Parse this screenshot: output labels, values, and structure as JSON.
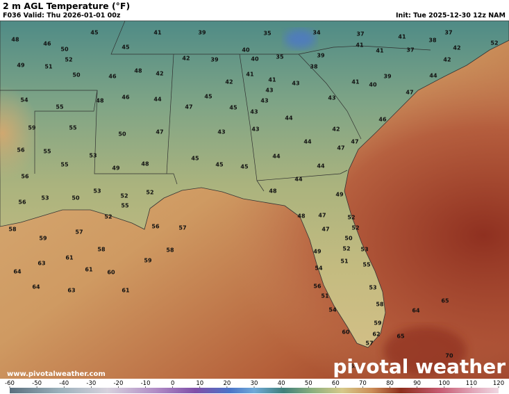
{
  "header": {
    "title": "2 m AGL Temperature (°F)",
    "valid": "F036 Valid: Thu 2026-01-01 00z",
    "init": "Init: Tue 2025-12-30 12z NAM"
  },
  "map": {
    "labels": [
      48,
      46,
      50,
      52,
      49,
      51,
      50,
      45,
      45,
      41,
      39,
      35,
      34,
      37,
      41,
      37,
      38,
      52,
      42,
      41,
      41,
      37,
      40,
      40,
      35,
      39,
      38,
      42,
      39,
      48,
      42,
      46,
      42,
      44,
      54,
      55,
      48,
      46,
      44,
      42,
      41,
      41,
      43,
      43,
      43,
      41,
      40,
      39,
      47,
      47,
      45,
      45,
      43,
      43,
      44,
      59,
      55,
      50,
      47,
      43,
      43,
      42,
      44,
      46,
      56,
      55,
      53,
      47,
      47,
      45,
      45,
      45,
      44,
      44,
      55,
      49,
      48,
      56,
      53,
      52,
      44,
      48,
      49,
      56,
      53,
      50,
      52,
      55,
      52,
      48,
      47,
      52,
      58,
      57,
      56,
      57,
      52,
      47,
      50,
      59,
      58,
      58,
      49,
      52,
      53,
      61,
      59,
      63,
      51,
      55,
      61,
      60,
      64,
      54,
      64,
      63,
      61,
      56,
      53,
      51,
      58,
      65,
      54,
      64,
      59,
      60,
      62,
      65,
      57,
      70,
      63
    ]
  },
  "footer": {
    "url": "www.pivotalweather.com",
    "logo": "pivotal weather"
  },
  "colorbar": {
    "ticks": [
      -60,
      -50,
      -40,
      -30,
      -20,
      -10,
      0,
      10,
      20,
      30,
      40,
      50,
      60,
      70,
      80,
      90,
      100,
      110,
      120
    ]
  }
}
